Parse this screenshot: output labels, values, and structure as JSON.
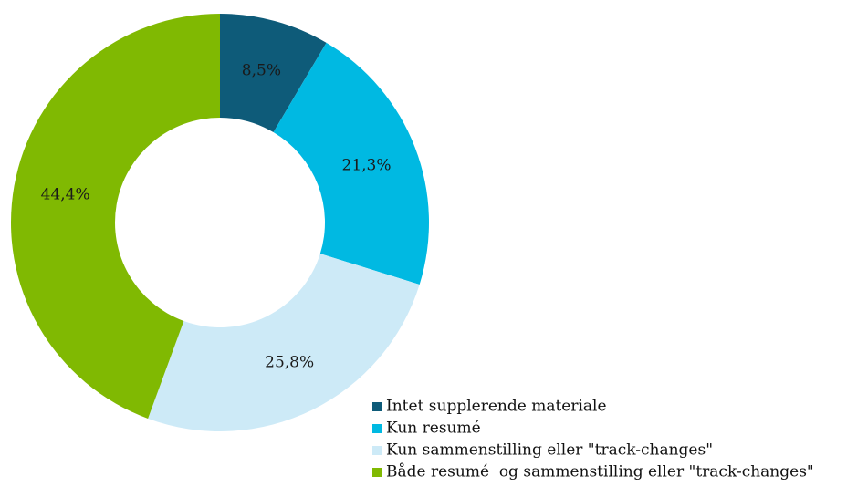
{
  "chart_data": {
    "type": "donut",
    "categories": [
      "Intet supplerende materiale",
      "Kun resumé",
      "Kun sammenstilling eller \"track-changes\"",
      "Både resumé  og sammenstilling eller \"track-changes\""
    ],
    "values": [
      8.5,
      21.3,
      25.8,
      44.4
    ],
    "value_labels": [
      "8,5%",
      "21,3%",
      "25,8%",
      "44,4%"
    ],
    "colors": [
      "#0e5b79",
      "#00b9e2",
      "#cdeaf7",
      "#80b902"
    ],
    "legend": "bottom-right"
  }
}
